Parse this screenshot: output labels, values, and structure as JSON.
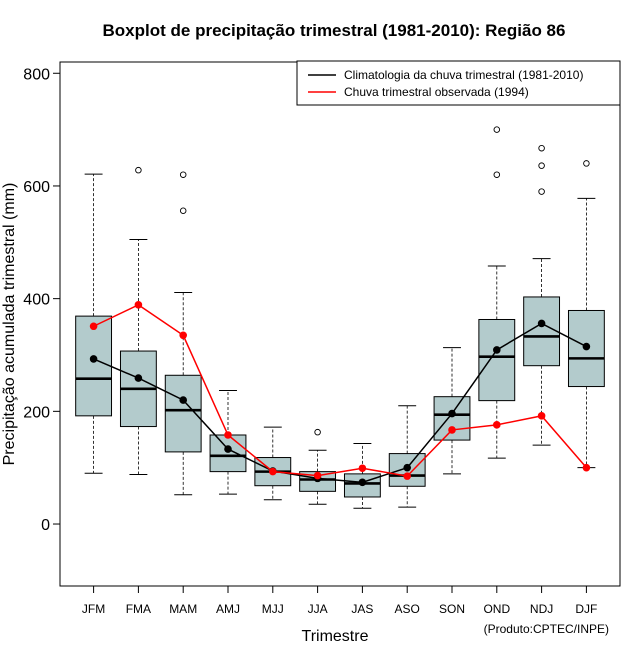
{
  "chart_data": {
    "type": "boxplot",
    "title": "Boxplot de precipitação trimestral (1981-2010): Região 86",
    "xlabel": "Trimestre",
    "ylabel": "Precipitação acumulada trimestral (mm)",
    "ylim": [
      -110,
      820
    ],
    "yticks": [
      0,
      200,
      400,
      600,
      800
    ],
    "categories": [
      "JFM",
      "FMA",
      "MAM",
      "AMJ",
      "MJJ",
      "JJA",
      "JAS",
      "ASO",
      "SON",
      "OND",
      "NDJ",
      "DJF"
    ],
    "boxes": [
      {
        "min": 90,
        "q1": 192,
        "median": 258,
        "q3": 369,
        "max": 621,
        "outliers": []
      },
      {
        "min": 88,
        "q1": 173,
        "median": 240,
        "q3": 307,
        "max": 505,
        "outliers": [
          628
        ]
      },
      {
        "min": 52,
        "q1": 128,
        "median": 202,
        "q3": 264,
        "max": 411,
        "outliers": [
          556,
          620
        ]
      },
      {
        "min": 53,
        "q1": 93,
        "median": 121,
        "q3": 158,
        "max": 237,
        "outliers": []
      },
      {
        "min": 43,
        "q1": 68,
        "median": 93,
        "q3": 118,
        "max": 172,
        "outliers": []
      },
      {
        "min": 35,
        "q1": 58,
        "median": 79,
        "q3": 93,
        "max": 131,
        "outliers": [
          163
        ]
      },
      {
        "min": 28,
        "q1": 48,
        "median": 72,
        "q3": 89,
        "max": 143,
        "outliers": []
      },
      {
        "min": 30,
        "q1": 67,
        "median": 86,
        "q3": 125,
        "max": 210,
        "outliers": []
      },
      {
        "min": 89,
        "q1": 149,
        "median": 194,
        "q3": 226,
        "max": 313,
        "outliers": []
      },
      {
        "min": 117,
        "q1": 219,
        "median": 297,
        "q3": 363,
        "max": 458,
        "outliers": [
          620,
          700
        ]
      },
      {
        "min": 140,
        "q1": 281,
        "median": 333,
        "q3": 403,
        "max": 471,
        "outliers": [
          590,
          636,
          667
        ]
      },
      {
        "min": 100,
        "q1": 244,
        "median": 294,
        "q3": 379,
        "max": 578,
        "outliers": [
          640
        ]
      }
    ],
    "series": [
      {
        "name": "Climatologia da chuva trimestral (1981-2010)",
        "color": "#000000",
        "values": [
          293,
          259,
          220,
          133,
          94,
          81,
          74,
          100,
          196,
          309,
          356,
          315
        ]
      },
      {
        "name": "Chuva trimestral observada (1994)",
        "color": "#ff0000",
        "values": [
          351,
          389,
          335,
          158,
          93,
          86,
          99,
          85,
          167,
          176,
          192,
          100
        ]
      }
    ],
    "box_fill": "#b3cbcc",
    "legend_position": "top-right"
  },
  "credit": "(Produto:CPTEC/INPE)"
}
